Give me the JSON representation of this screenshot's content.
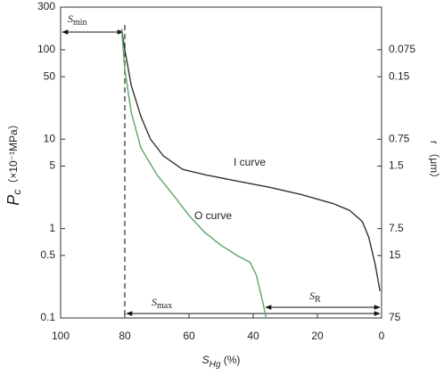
{
  "chart_data": {
    "type": "line",
    "x_label": {
      "text": "S",
      "sub": "Hg",
      "unit": " (%)"
    },
    "y_label": {
      "text": "P",
      "sub": "c",
      "unit": "（×10⁻¹MPa）"
    },
    "y2_label": "r （μm）",
    "xlim": [
      100,
      0
    ],
    "xticks": [
      100,
      80,
      60,
      40,
      20,
      0
    ],
    "ylim": [
      0.1,
      300
    ],
    "yticks": [
      0.1,
      0.5,
      1,
      5,
      10,
      50,
      100,
      300
    ],
    "log_y": true,
    "y2lim": [
      75,
      0.025
    ],
    "y2ticks": [
      0.075,
      0.15,
      0.75,
      1.5,
      7.5,
      15,
      75
    ],
    "log_y2": true,
    "series": [
      {
        "name": "I curve",
        "color": "#333333",
        "x": [
          81,
          80,
          78,
          75,
          72,
          68,
          62,
          55,
          45,
          35,
          25,
          15,
          10,
          6,
          4,
          2,
          0.5
        ],
        "values": [
          170,
          100,
          40,
          18,
          10,
          6.5,
          4.6,
          4,
          3.4,
          2.9,
          2.4,
          1.9,
          1.6,
          1.2,
          0.8,
          0.4,
          0.2
        ]
      },
      {
        "name": "O curve",
        "color": "#5aa86a",
        "x": [
          81,
          80,
          78,
          75,
          70,
          65,
          60,
          55,
          50,
          45,
          41,
          39,
          37,
          36
        ],
        "values": [
          170,
          60,
          20,
          8,
          4,
          2.4,
          1.4,
          0.9,
          0.65,
          0.5,
          0.42,
          0.3,
          0.15,
          0.1
        ]
      }
    ],
    "annotations": [
      {
        "text": "S",
        "sub": "min"
      },
      {
        "text": "S",
        "sub": "max"
      },
      {
        "text": "S",
        "sub": "R"
      }
    ]
  }
}
